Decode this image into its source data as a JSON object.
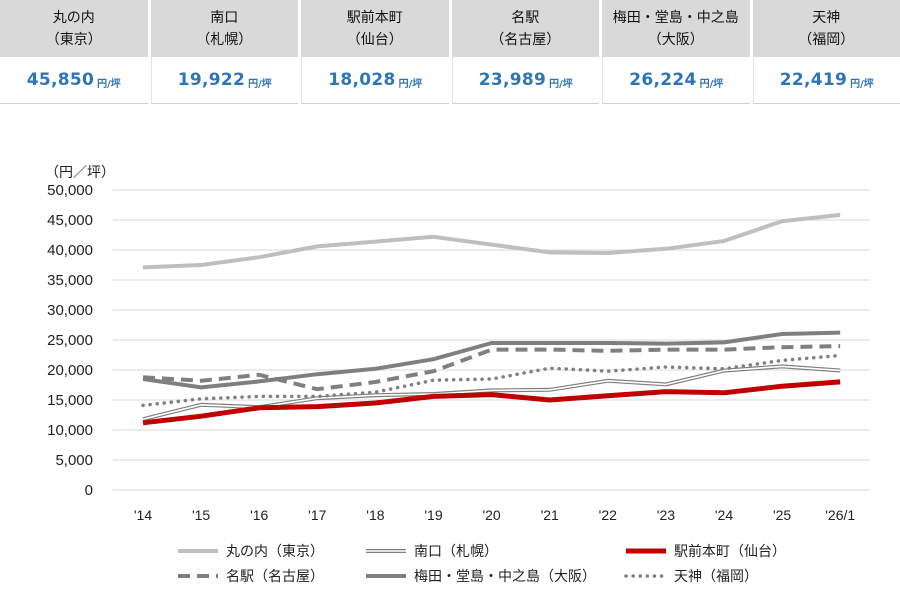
{
  "header": {
    "unit": "円/坪",
    "cards": [
      {
        "name": "丸の内",
        "region": "（東京）",
        "price": "45,850"
      },
      {
        "name": "南口",
        "region": "（札幌）",
        "price": "19,922"
      },
      {
        "name": "駅前本町",
        "region": "（仙台）",
        "price": "18,028"
      },
      {
        "name": "名駅",
        "region": "（名古屋）",
        "price": "23,989"
      },
      {
        "name": "梅田・堂島・中之島",
        "region": "（大阪）",
        "price": "26,224"
      },
      {
        "name": "天神",
        "region": "（福岡）",
        "price": "22,419"
      }
    ]
  },
  "chart_data": {
    "type": "line",
    "title": "",
    "ylabel": "（円／坪）",
    "xlabel": "",
    "ylim": [
      0,
      50000
    ],
    "yticks": [
      0,
      5000,
      10000,
      15000,
      20000,
      25000,
      30000,
      35000,
      40000,
      45000,
      50000
    ],
    "ytick_labels": [
      "0",
      "5,000",
      "10,000",
      "15,000",
      "20,000",
      "25,000",
      "30,000",
      "35,000",
      "40,000",
      "45,000",
      "50,000"
    ],
    "categories": [
      "'14",
      "'15",
      "'16",
      "'17",
      "'18",
      "'19",
      "'20",
      "'21",
      "'22",
      "'23",
      "'24",
      "'25",
      "'26/1"
    ],
    "grid": true,
    "legend_position": "bottom",
    "series": [
      {
        "name": "丸の内（東京）",
        "style": "solid-light",
        "color": "#bfbfbf",
        "values": [
          37100,
          37500,
          38800,
          40600,
          41400,
          42200,
          40900,
          39600,
          39500,
          40200,
          41500,
          44800,
          45850
        ]
      },
      {
        "name": "南口（札幌）",
        "style": "double",
        "color": "#7f7f7f",
        "values": [
          11800,
          14200,
          13800,
          15300,
          15800,
          16000,
          16600,
          16700,
          18200,
          17600,
          19900,
          20600,
          19922
        ]
      },
      {
        "name": "駅前本町（仙台）",
        "style": "solid-thick",
        "color": "#c00000",
        "values": [
          11200,
          12300,
          13700,
          13900,
          14500,
          15600,
          15900,
          15000,
          15700,
          16400,
          16200,
          17300,
          18028
        ]
      },
      {
        "name": "名駅（名古屋）",
        "style": "dashed",
        "color": "#7f7f7f",
        "values": [
          18800,
          18200,
          19200,
          16800,
          18000,
          19800,
          23400,
          23400,
          23200,
          23400,
          23400,
          23800,
          23989
        ]
      },
      {
        "name": "梅田・堂島・中之島（大阪）",
        "style": "solid-dark",
        "color": "#7f7f7f",
        "values": [
          18500,
          17100,
          18100,
          19300,
          20200,
          21800,
          24500,
          24500,
          24500,
          24400,
          24600,
          26000,
          26224
        ]
      },
      {
        "name": "天神（福岡）",
        "style": "dotted",
        "color": "#7f7f7f",
        "values": [
          14100,
          15200,
          15600,
          15600,
          16300,
          18300,
          18500,
          20300,
          19800,
          20500,
          20200,
          21600,
          22419
        ]
      }
    ]
  }
}
